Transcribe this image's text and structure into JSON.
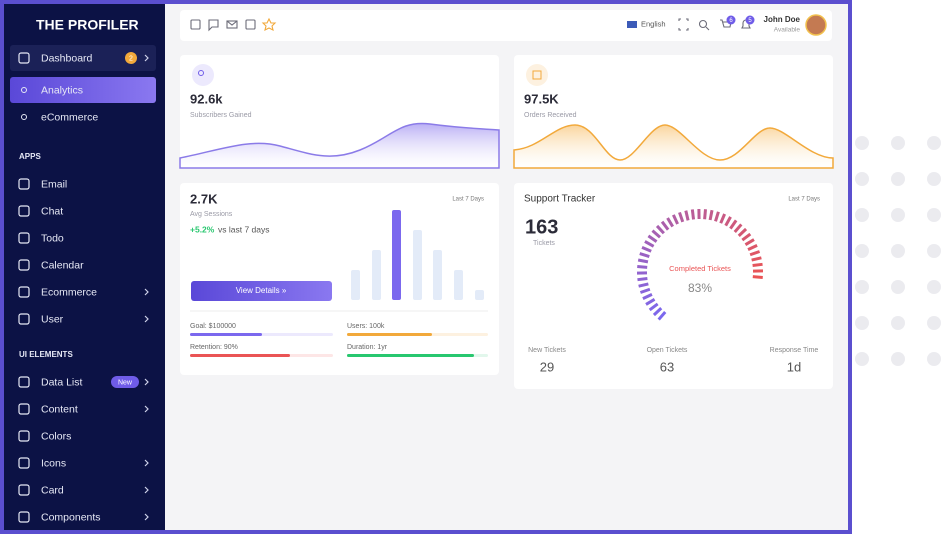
{
  "sidebar": {
    "brand": "THE PROFILER",
    "menu": [
      {
        "label": "Dashboard",
        "badge": "2",
        "expandable": true
      },
      {
        "label": "Analytics",
        "active": true
      },
      {
        "label": "eCommerce"
      }
    ],
    "sections": [
      {
        "title": "APPS",
        "items": [
          {
            "label": "Email"
          },
          {
            "label": "Chat"
          },
          {
            "label": "Todo"
          },
          {
            "label": "Calendar"
          },
          {
            "label": "Ecommerce",
            "expandable": true
          },
          {
            "label": "User",
            "expandable": true
          }
        ]
      },
      {
        "title": "UI ELEMENTS",
        "items": [
          {
            "label": "Data List",
            "badge": "New",
            "expandable": true
          },
          {
            "label": "Content",
            "expandable": true
          },
          {
            "label": "Colors"
          },
          {
            "label": "Icons",
            "expandable": true
          },
          {
            "label": "Card",
            "expandable": true
          },
          {
            "label": "Components",
            "expandable": true
          }
        ]
      }
    ]
  },
  "header": {
    "language": "English",
    "cart_badge": "6",
    "notification_badge": "5",
    "user_name": "John Doe",
    "user_status": "Available"
  },
  "subscribers": {
    "value": "92.6k",
    "label": "Subscribers Gained"
  },
  "orders": {
    "value": "97.5K",
    "label": "Orders Received"
  },
  "sessions": {
    "value": "2.7K",
    "label": "Avg Sessions",
    "period": "Last 7 Days",
    "change": "+5.2%",
    "change_note": "vs last 7 days",
    "button": "View Details »",
    "goals": [
      "Goal: $100000",
      "Users: 100k",
      "Retention: 90%",
      "Duration: 1yr"
    ]
  },
  "support": {
    "title": "Support Tracker",
    "period": "Last 7 Days",
    "tickets": "163",
    "tickets_label": "Tickets",
    "gauge_label": "Completed Tickets",
    "gauge_value": "83%",
    "stats": [
      {
        "label": "New Tickets",
        "value": "29"
      },
      {
        "label": "Open Tickets",
        "value": "63"
      },
      {
        "label": "Response Time",
        "value": "1d"
      }
    ]
  }
}
